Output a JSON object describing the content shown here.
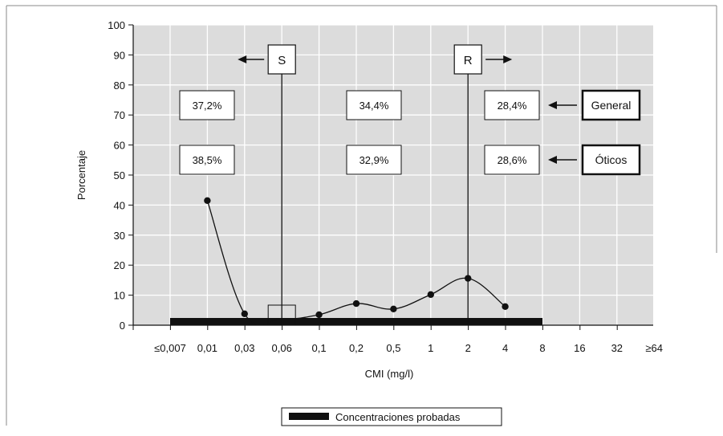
{
  "chart_data": {
    "type": "line",
    "title": "",
    "xlabel": "CMI (mg/l)",
    "ylabel": "Porcentaje",
    "ylim": [
      0,
      100
    ],
    "yticks": [
      "0",
      "10",
      "20",
      "30",
      "40",
      "50",
      "60",
      "70",
      "80",
      "90",
      "100"
    ],
    "categories": [
      "≤0,007",
      "0,01",
      "0,03",
      "0,06",
      "0,1",
      "0,2",
      "0,5",
      "1",
      "2",
      "4",
      "8",
      "16",
      "32",
      "≥64"
    ],
    "series": [
      {
        "values": [
          null,
          41.5,
          3.8,
          2.0,
          3.5,
          7.2,
          5.4,
          10.2,
          15.6,
          6.2,
          null,
          null,
          null,
          null
        ]
      }
    ],
    "tested_range": {
      "from": "≤0,007",
      "to": "8",
      "label": "Concentraciones probadas"
    },
    "breakpoints": [
      {
        "label": "S",
        "at": "0,06",
        "direction": "left"
      },
      {
        "label": "R",
        "at": "2",
        "direction": "right"
      }
    ],
    "percent_groups": [
      {
        "name": "General",
        "values": [
          "37,2%",
          "34,4%",
          "28,4%"
        ]
      },
      {
        "name": "Óticos",
        "values": [
          "38,5%",
          "32,9%",
          "28,6%"
        ]
      }
    ],
    "grid": true,
    "legend": "bottom-center",
    "colors": {
      "plot_bg": "#dcdcdc",
      "ink": "#111111",
      "grid": "#ffffff"
    }
  }
}
